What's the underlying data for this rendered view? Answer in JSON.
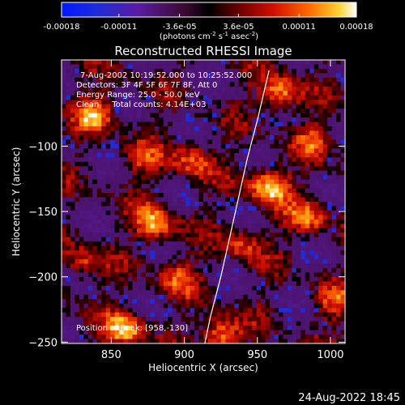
{
  "colorbar": {
    "ticks": [
      "-0.00018",
      "-0.00011",
      "-3.6e-05",
      "3.6e-05",
      "0.00011",
      "0.00018"
    ],
    "unit_main": "(photons cm",
    "unit_sup1": "-2",
    "unit_mid1": " s",
    "unit_sup2": "-1",
    "unit_mid2": " asec",
    "unit_sup3": "-2",
    "unit_end": ")"
  },
  "chart_data": {
    "type": "heatmap",
    "title": "Reconstructed RHESSI Image",
    "xlabel": "Heliocentric X (arcsec)",
    "ylabel": "Heliocentric Y (arcsec)",
    "xlim": [
      816,
      1010
    ],
    "ylim": [
      -251,
      -34
    ],
    "x_ticks": [
      850,
      900,
      950,
      1000
    ],
    "y_ticks": [
      -100,
      -150,
      -200,
      -250
    ],
    "x_tick_labels": [
      "850",
      "900",
      "950",
      "1000"
    ],
    "y_tick_labels": [
      "−100",
      "−150",
      "−200",
      "−250"
    ],
    "color_range": [
      -0.00018,
      0.00018
    ],
    "annotations": [
      "7-Aug-2002 10:19:52.000 to 10:25:52.000",
      "Detectors: 3F 4F 5F 6F 7F 8F, Att 0",
      "Energy Range: 25.0 - 50.0 keV",
      "Clean     Total counts: 4.14E+03"
    ],
    "position_label": "Position of Peak: [958,-130]",
    "limb_curve": [
      [
        914,
        -251
      ],
      [
        918,
        -230
      ],
      [
        925,
        -200
      ],
      [
        931,
        -170
      ],
      [
        937,
        -140
      ],
      [
        943,
        -110
      ],
      [
        950,
        -80
      ],
      [
        958,
        -42
      ]
    ],
    "bright_regions": [
      {
        "x": 958,
        "y": -130,
        "level": 0.00018
      },
      {
        "x": 965,
        "y": -60,
        "level": 0.00016
      },
      {
        "x": 840,
        "y": -75,
        "level": 0.00014
      },
      {
        "x": 880,
        "y": -160,
        "level": 0.00015
      },
      {
        "x": 860,
        "y": -240,
        "level": 0.00016
      },
      {
        "x": 925,
        "y": -245,
        "level": 0.00017
      },
      {
        "x": 905,
        "y": -110,
        "level": 0.00012
      },
      {
        "x": 940,
        "y": -175,
        "level": 0.0001
      },
      {
        "x": 985,
        "y": -155,
        "level": 0.00012
      },
      {
        "x": 895,
        "y": -200,
        "level": 0.0001
      },
      {
        "x": 830,
        "y": -190,
        "level": 0.00011
      },
      {
        "x": 1000,
        "y": -220,
        "level": 9e-05
      },
      {
        "x": 870,
        "y": -110,
        "level": 8e-05
      },
      {
        "x": 990,
        "y": -95,
        "level": 0.0001
      }
    ]
  },
  "footer": {
    "timestamp": "24-Aug-2022 18:45"
  }
}
